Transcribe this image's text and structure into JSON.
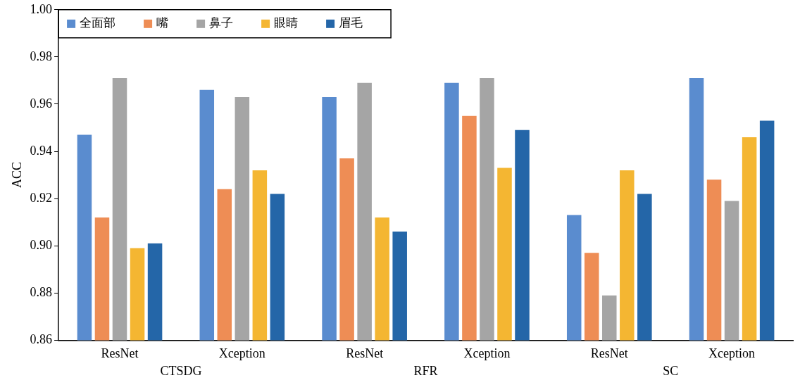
{
  "chart_data": {
    "type": "bar",
    "ylabel": "ACC",
    "categories": [
      "ResNet",
      "Xception",
      "ResNet",
      "Xception",
      "ResNet",
      "Xception"
    ],
    "series": [
      {
        "name": "全面部",
        "color": "#5a8ccf",
        "values": [
          0.947,
          0.966,
          0.963,
          0.969,
          0.913,
          0.971
        ]
      },
      {
        "name": "嘴",
        "color": "#ee8d55",
        "values": [
          0.912,
          0.924,
          0.937,
          0.955,
          0.897,
          0.928
        ]
      },
      {
        "name": "鼻子",
        "color": "#a5a5a5",
        "values": [
          0.971,
          0.963,
          0.969,
          0.971,
          0.879,
          0.919
        ]
      },
      {
        "name": "眼睛",
        "color": "#f4b632",
        "values": [
          0.899,
          0.932,
          0.912,
          0.933,
          0.932,
          0.946
        ]
      },
      {
        "name": "眉毛",
        "color": "#2466a8",
        "values": [
          0.901,
          0.922,
          0.906,
          0.949,
          0.922,
          0.953
        ]
      }
    ],
    "ylim": [
      0.86,
      1.0
    ],
    "yticks": [
      0.86,
      0.88,
      {
        "value": 0.9,
        "label": "0.90"
      },
      0.92,
      0.94,
      0.96,
      0.98,
      {
        "value": 1.0,
        "label": "1.00"
      }
    ],
    "annotations": [
      "CTSDG",
      "RFR",
      "SC"
    ],
    "grid": false,
    "legend": "top left"
  }
}
